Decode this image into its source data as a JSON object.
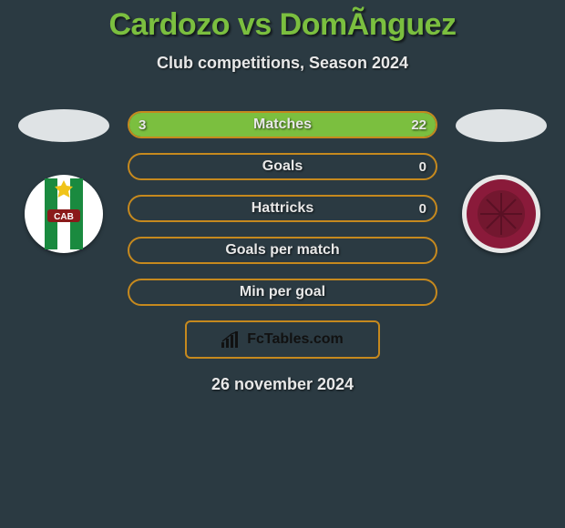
{
  "header": {
    "title": "Cardozo vs DomÃ­nguez",
    "subtitle": "Club competitions, Season 2024",
    "title_color": "#7bbf3f",
    "title_fontsize": 34,
    "subtitle_fontsize": 18
  },
  "colors": {
    "background": "#2b3a42",
    "bar_border": "#c6891e",
    "bar_fill": "#7bbf3f",
    "text": "#e8e8e8"
  },
  "left_team": {
    "ellipse_color": "#dfe3e5",
    "logo": {
      "bg": "#ffffff",
      "stripes": "#1a8a3f",
      "star": "#f0c419",
      "initials_bg": "#8a1a1a",
      "initials": "CAB"
    }
  },
  "right_team": {
    "ellipse_color": "#dfe3e5",
    "logo": {
      "ring_outer": "#e8e8e8",
      "ring": "#8a1a3a",
      "center": "#73172f"
    }
  },
  "bars": [
    {
      "label": "Matches",
      "left": "3",
      "right": "22",
      "left_pct": 12,
      "right_pct": 88
    },
    {
      "label": "Goals",
      "left": "",
      "right": "0",
      "left_pct": 0,
      "right_pct": 0
    },
    {
      "label": "Hattricks",
      "left": "",
      "right": "0",
      "left_pct": 0,
      "right_pct": 0
    },
    {
      "label": "Goals per match",
      "left": "",
      "right": "",
      "left_pct": 0,
      "right_pct": 0
    },
    {
      "label": "Min per goal",
      "left": "",
      "right": "",
      "left_pct": 0,
      "right_pct": 0
    }
  ],
  "footer": {
    "brand": "FcTables.com",
    "date": "26 november 2024"
  }
}
